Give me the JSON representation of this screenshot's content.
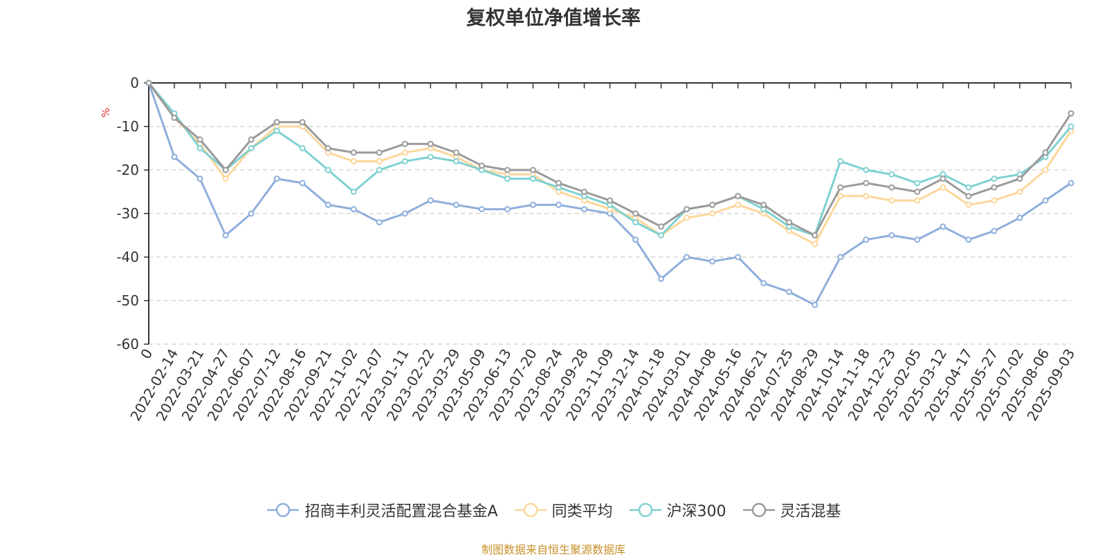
{
  "chart_data": {
    "type": "line",
    "title": "复权单位净值增长率",
    "ylabel": "%",
    "ylim": [
      -60,
      0
    ],
    "yticks": [
      0,
      -10,
      -20,
      -30,
      -40,
      -50,
      -60
    ],
    "grid": true,
    "legend_position": "bottom",
    "source": "制图数据来自恒生聚源数据库",
    "categories": [
      "0",
      "2022-02-14",
      "2022-03-21",
      "2022-04-27",
      "2022-06-07",
      "2022-07-12",
      "2022-08-16",
      "2022-09-21",
      "2022-11-02",
      "2022-12-07",
      "2023-01-11",
      "2023-02-22",
      "2023-03-29",
      "2023-05-09",
      "2023-06-13",
      "2023-07-20",
      "2023-08-24",
      "2023-09-28",
      "2023-11-09",
      "2023-12-14",
      "2024-01-18",
      "2024-03-01",
      "2024-04-08",
      "2024-05-16",
      "2024-06-21",
      "2024-07-25",
      "2024-08-29",
      "2024-10-14",
      "2024-11-18",
      "2024-12-23",
      "2025-02-05",
      "2025-03-12",
      "2025-04-17",
      "2025-05-27",
      "2025-07-02",
      "2025-08-06",
      "2025-09-03"
    ],
    "series": [
      {
        "name": "招商丰利灵活配置混合基金A",
        "color": "#8eaedc",
        "values": [
          0,
          -17,
          -22,
          -35,
          -30,
          -22,
          -23,
          -28,
          -29,
          -32,
          -30,
          -27,
          -28,
          -29,
          -29,
          -28,
          -28,
          -29,
          -30,
          -36,
          -45,
          -40,
          -41,
          -40,
          -46,
          -48,
          -51,
          -40,
          -36,
          -35,
          -36,
          -33,
          -36,
          -34,
          -31,
          -27,
          -23
        ]
      },
      {
        "name": "同类平均",
        "color": "#fcd79a",
        "values": [
          0,
          -8,
          -14,
          -22,
          -15,
          -10,
          -10,
          -16,
          -18,
          -18,
          -16,
          -15,
          -17,
          -20,
          -21,
          -21,
          -25,
          -27,
          -29,
          -31,
          -35,
          -31,
          -30,
          -28,
          -30,
          -34,
          -37,
          -26,
          -26,
          -27,
          -27,
          -24,
          -28,
          -27,
          -25,
          -20,
          -11
        ]
      },
      {
        "name": "沪深300",
        "color": "#7fd1d1",
        "values": [
          0,
          -7,
          -15,
          -20,
          -15,
          -11,
          -15,
          -20,
          -25,
          -20,
          -18,
          -17,
          -18,
          -20,
          -22,
          -22,
          -24,
          -26,
          -28,
          -32,
          -35,
          -29,
          -28,
          -26,
          -29,
          -33,
          -35,
          -18,
          -20,
          -21,
          -23,
          -21,
          -24,
          -22,
          -21,
          -17,
          -10
        ]
      },
      {
        "name": "灵活混基",
        "color": "#9a9a9a",
        "values": [
          0,
          -8,
          -13,
          -20,
          -13,
          -9,
          -9,
          -15,
          -16,
          -16,
          -14,
          -14,
          -16,
          -19,
          -20,
          -20,
          -23,
          -25,
          -27,
          -30,
          -33,
          -29,
          -28,
          -26,
          -28,
          -32,
          -35,
          -24,
          -23,
          -24,
          -25,
          -22,
          -26,
          -24,
          -22,
          -16,
          -7
        ]
      }
    ]
  }
}
